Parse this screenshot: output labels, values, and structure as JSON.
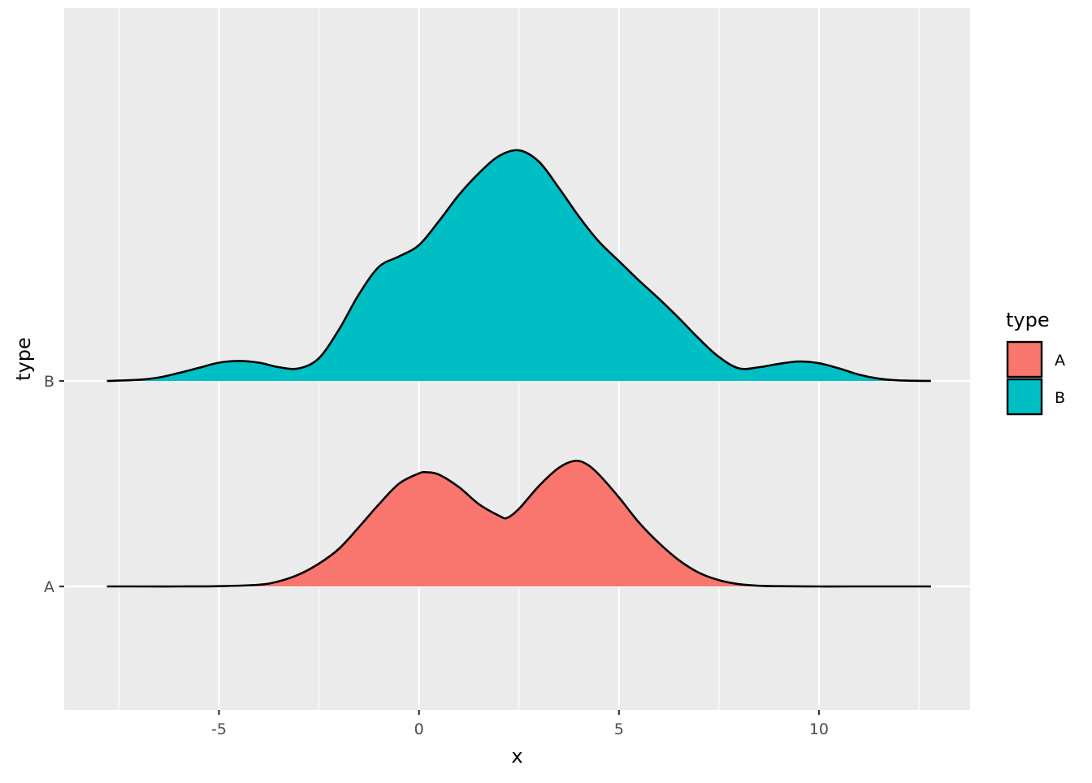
{
  "chart_data": {
    "type": "area",
    "subtype": "ridgeline",
    "xlabel": "x",
    "ylabel": "type",
    "xlim": [
      -8.87,
      13.78
    ],
    "x_ticks": [
      -5,
      0,
      5,
      10
    ],
    "x_tick_labels": [
      "-5",
      "0",
      "5",
      "10"
    ],
    "x_minor_grid": [
      -7.5,
      -2.5,
      2.5,
      7.5,
      12.5
    ],
    "categories": [
      "A",
      "B"
    ],
    "ridge_scale": 1.8,
    "grid": true,
    "panel_background": "#EBEBEB",
    "legend": {
      "title": "type",
      "position": "right",
      "entries": [
        {
          "label": "A",
          "color": "#F8766D"
        },
        {
          "label": "B",
          "color": "#00BFC4"
        }
      ]
    },
    "series": [
      {
        "name": "A",
        "color": "#F8766D",
        "x": [
          -7.8,
          -7.0,
          -6.0,
          -5.0,
          -4.0,
          -3.5,
          -3.0,
          -2.5,
          -2.0,
          -1.5,
          -1.0,
          -0.5,
          0.0,
          0.2,
          0.5,
          1.0,
          1.5,
          2.0,
          2.2,
          2.5,
          3.0,
          3.5,
          3.9,
          4.2,
          4.5,
          5.0,
          5.5,
          6.0,
          6.5,
          7.0,
          7.5,
          8.0,
          8.5,
          9.0,
          10.0,
          11.0,
          12.0,
          12.8
        ],
        "y": [
          0.0,
          0.0,
          0.0,
          0.002,
          0.015,
          0.045,
          0.105,
          0.2,
          0.33,
          0.52,
          0.72,
          0.9,
          0.99,
          1.0,
          0.98,
          0.87,
          0.72,
          0.62,
          0.6,
          0.68,
          0.88,
          1.04,
          1.1,
          1.07,
          0.98,
          0.78,
          0.56,
          0.38,
          0.23,
          0.12,
          0.055,
          0.02,
          0.006,
          0.002,
          0.0,
          0.0,
          0.0,
          0.0
        ]
      },
      {
        "name": "B",
        "color": "#00BFC4",
        "x": [
          -7.8,
          -7.0,
          -6.5,
          -6.0,
          -5.5,
          -5.0,
          -4.5,
          -4.0,
          -3.5,
          -3.0,
          -2.5,
          -2.0,
          -1.5,
          -1.0,
          -0.5,
          0.0,
          0.5,
          1.0,
          1.5,
          2.0,
          2.5,
          3.0,
          3.5,
          4.0,
          4.5,
          5.0,
          5.5,
          6.0,
          6.5,
          7.0,
          7.5,
          8.0,
          8.5,
          9.0,
          9.5,
          10.0,
          10.5,
          11.0,
          11.5,
          12.0,
          12.8
        ],
        "y": [
          0.0,
          0.01,
          0.03,
          0.07,
          0.115,
          0.16,
          0.175,
          0.16,
          0.12,
          0.11,
          0.2,
          0.45,
          0.76,
          1.0,
          1.09,
          1.19,
          1.4,
          1.63,
          1.82,
          1.97,
          2.02,
          1.92,
          1.69,
          1.44,
          1.22,
          1.05,
          0.88,
          0.72,
          0.55,
          0.37,
          0.21,
          0.11,
          0.12,
          0.15,
          0.17,
          0.155,
          0.11,
          0.055,
          0.02,
          0.005,
          0.0
        ]
      }
    ]
  }
}
